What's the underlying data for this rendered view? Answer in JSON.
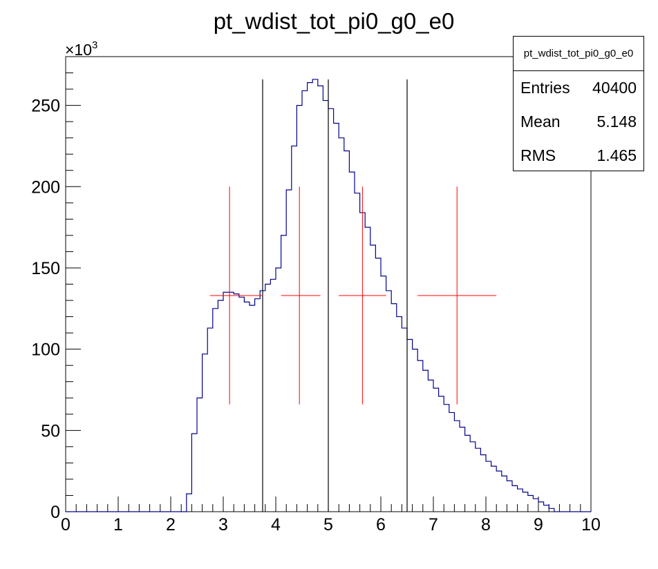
{
  "chart_data": {
    "type": "histogram",
    "title": "pt_wdist_tot_pi0_g0_e0",
    "xlabel": "",
    "ylabel": "",
    "y_multiplier_label": "×10",
    "y_multiplier_exponent": "3",
    "xlim": [
      0,
      10
    ],
    "ylim": [
      0,
      280000
    ],
    "x_ticks": [
      0,
      1,
      2,
      3,
      4,
      5,
      6,
      7,
      8,
      9,
      10
    ],
    "x_tick_labels": [
      "0",
      "1",
      "2",
      "3",
      "4",
      "5",
      "6",
      "7",
      "8",
      "9",
      "10"
    ],
    "y_ticks": [
      0,
      50000,
      100000,
      150000,
      200000,
      250000
    ],
    "y_tick_labels": [
      "0",
      "50",
      "100",
      "150",
      "200",
      "250"
    ],
    "histogram": {
      "bin_edges_start": 0,
      "bin_width": 0.1,
      "line_color": "#00008b",
      "counts": [
        0,
        0,
        0,
        0,
        0,
        0,
        0,
        0,
        0,
        0,
        0,
        0,
        0,
        0,
        0,
        0,
        0,
        0,
        0,
        0,
        0,
        0,
        0,
        11000,
        48000,
        70000,
        97000,
        113000,
        125000,
        130000,
        135000,
        135000,
        134000,
        132000,
        129000,
        127000,
        131000,
        136000,
        140000,
        143000,
        150000,
        170000,
        198000,
        225000,
        250000,
        259000,
        264000,
        266000,
        262000,
        253000,
        248000,
        239000,
        230000,
        222000,
        209000,
        196000,
        184000,
        175000,
        164000,
        156000,
        145000,
        136000,
        128000,
        120000,
        113000,
        106000,
        100000,
        93000,
        87000,
        81000,
        76000,
        71000,
        66000,
        61000,
        56000,
        52000,
        47000,
        43000,
        39000,
        35000,
        31000,
        28000,
        25000,
        22000,
        19000,
        16000,
        14000,
        12000,
        10000,
        8000,
        6000,
        4000,
        2000,
        0,
        0,
        0,
        0,
        0,
        0,
        0
      ]
    },
    "stats": {
      "title": "pt_wdist_tot_pi0_g0_e0",
      "rows": [
        {
          "label": "Entries",
          "value": "40400"
        },
        {
          "label": "Mean",
          "value": "5.148"
        },
        {
          "label": "RMS",
          "value": "1.465"
        }
      ]
    },
    "vertical_lines": {
      "color": "#000000",
      "x": [
        3.75,
        5.0,
        6.5
      ],
      "top_y": 266000
    },
    "error_points": {
      "color": "#ff0000",
      "points": [
        {
          "x": 3.12,
          "y": 133000,
          "xlo": 2.75,
          "xhi": 3.75,
          "ylo": 66000,
          "yhi": 200000
        },
        {
          "x": 4.45,
          "y": 133000,
          "xlo": 4.1,
          "xhi": 4.85,
          "ylo": 66000,
          "yhi": 200000
        },
        {
          "x": 5.65,
          "y": 133000,
          "xlo": 5.2,
          "xhi": 6.1,
          "ylo": 66000,
          "yhi": 200000
        },
        {
          "x": 7.45,
          "y": 133000,
          "xlo": 6.7,
          "xhi": 8.2,
          "ylo": 66000,
          "yhi": 200000
        }
      ]
    }
  }
}
